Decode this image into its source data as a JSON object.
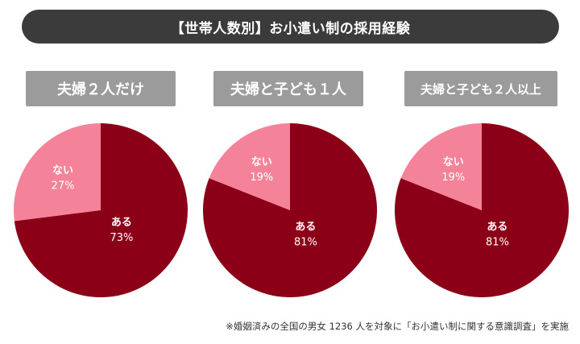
{
  "title": "【世帯人数別】お小遣い制の採用経験",
  "footnote": "※婚姻済みの全国の男女 1236 人を対象に「お小遣い制に関する意識調査」を実施",
  "colors": {
    "yes": "#8b0016",
    "no": "#f4839a",
    "label_bg": "#9b9b9b",
    "title_bg": "#3b3b3b"
  },
  "chart_data": [
    {
      "type": "pie",
      "title": "夫婦２人だけ",
      "slices": [
        {
          "label": "ない",
          "value": 27,
          "display": "27%"
        },
        {
          "label": "ある",
          "value": 73,
          "display": "73%"
        }
      ]
    },
    {
      "type": "pie",
      "title": "夫婦と子ども１人",
      "slices": [
        {
          "label": "ない",
          "value": 19,
          "display": "19%"
        },
        {
          "label": "ある",
          "value": 81,
          "display": "81%"
        }
      ]
    },
    {
      "type": "pie",
      "title": "夫婦と子ども２人以上",
      "slices": [
        {
          "label": "ない",
          "value": 19,
          "display": "19%"
        },
        {
          "label": "ある",
          "value": 81,
          "display": "81%"
        }
      ]
    }
  ]
}
